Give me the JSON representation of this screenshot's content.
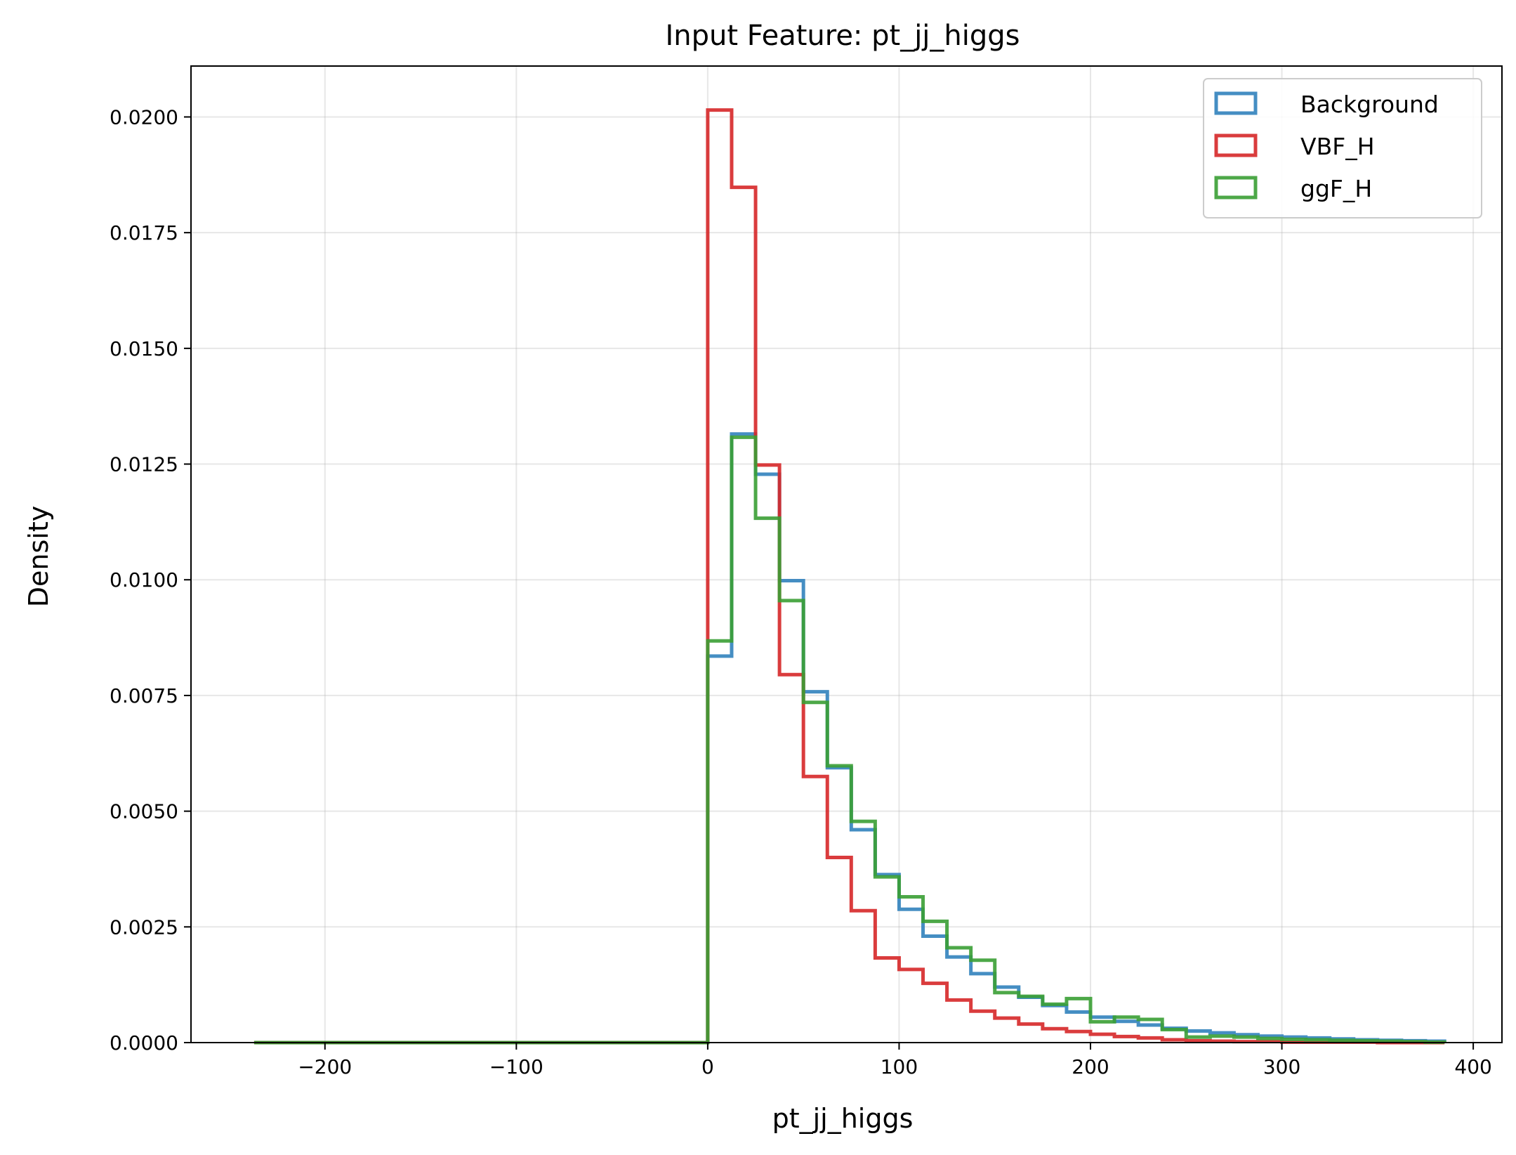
{
  "chart_data": {
    "type": "histogram-step",
    "title": "Input Feature: pt_jj_higgs",
    "xlabel": "pt_jj_higgs",
    "ylabel": "Density",
    "xlim": [
      -270,
      415
    ],
    "ylim": [
      0,
      0.0211
    ],
    "xticks": [
      -200,
      -100,
      0,
      100,
      200,
      300,
      400
    ],
    "xtick_labels": [
      "−200",
      "−100",
      "0",
      "100",
      "200",
      "300",
      "400"
    ],
    "yticks": [
      0,
      0.0025,
      0.005,
      0.0075,
      0.01,
      0.0125,
      0.015,
      0.0175,
      0.02
    ],
    "ytick_labels": [
      "0.0000",
      "0.0025",
      "0.0050",
      "0.0075",
      "0.0100",
      "0.0125",
      "0.0150",
      "0.0175",
      "0.0200"
    ],
    "grid": true,
    "legend_position": "top-right",
    "bin_start": -237,
    "bin_edges": [
      0,
      12.5,
      25,
      37.5,
      50,
      62.5,
      75,
      87.5,
      100,
      112.5,
      125,
      137.5,
      150,
      162.5,
      175,
      187.5,
      200,
      212.5,
      225,
      237.5,
      250,
      262.5,
      275,
      287.5,
      300,
      312.5,
      325,
      337.5,
      350,
      362.5,
      375,
      385
    ],
    "series": [
      {
        "name": "Background",
        "color": "#3182bd",
        "values": [
          0.00835,
          0.01315,
          0.01228,
          0.00998,
          0.00758,
          0.00594,
          0.0046,
          0.00363,
          0.00288,
          0.0023,
          0.00185,
          0.00149,
          0.0012,
          0.00098,
          0.0008,
          0.00066,
          0.00055,
          0.00046,
          0.00038,
          0.00031,
          0.00025,
          0.00021,
          0.00017,
          0.00014,
          0.00012,
          0.0001,
          8e-05,
          6e-05,
          5e-05,
          4e-05,
          3e-05
        ]
      },
      {
        "name": "VBF_H",
        "color": "#d62728",
        "values": [
          0.02015,
          0.01848,
          0.01248,
          0.00795,
          0.00575,
          0.004,
          0.00285,
          0.00183,
          0.00158,
          0.00128,
          0.00092,
          0.00068,
          0.00053,
          0.0004,
          0.0003,
          0.00024,
          0.00018,
          0.00013,
          0.0001,
          6e-05,
          4e-05,
          3e-05,
          2e-05,
          2e-05,
          1e-05,
          1e-05,
          1e-05,
          1e-05,
          0.0,
          0.0,
          0.0
        ]
      },
      {
        "name": "ggF_H",
        "color": "#3a9e34",
        "values": [
          0.00868,
          0.01308,
          0.01133,
          0.00955,
          0.00735,
          0.00598,
          0.00478,
          0.00358,
          0.00315,
          0.00262,
          0.00205,
          0.00178,
          0.00108,
          0.001,
          0.00083,
          0.00095,
          0.00045,
          0.00055,
          0.0005,
          0.00028,
          0.00012,
          0.00014,
          0.00012,
          9e-05,
          7e-05,
          6e-05,
          5e-05,
          4e-05,
          3e-05,
          2e-05,
          1e-05
        ]
      }
    ]
  }
}
